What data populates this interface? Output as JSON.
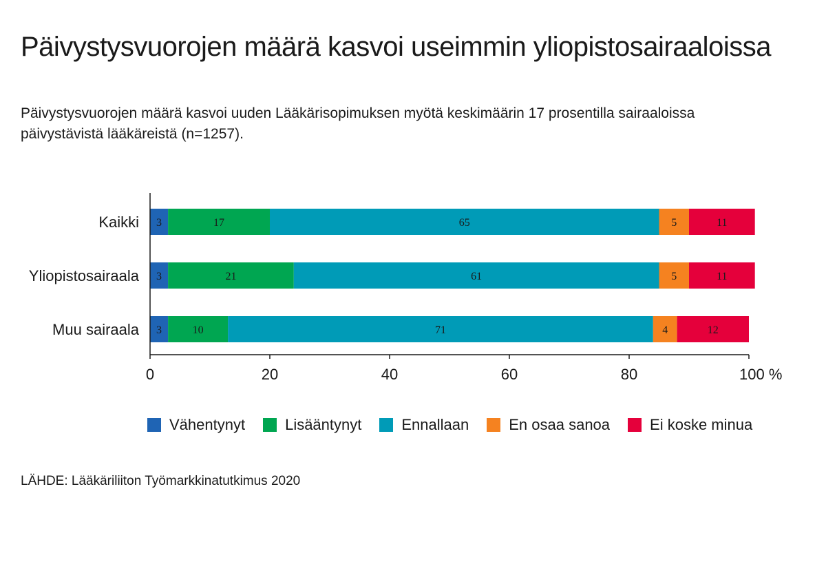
{
  "header": {
    "title": "Päivystysvuorojen määrä kasvoi useimmin yliopistosairaaloissa",
    "subtitle": "Päivystysvuorojen määrä kasvoi uuden Lääkärisopimuksen myötä keskimäärin 17 prosentilla sairaaloissa päivystävistä lääkäreistä (n=1257)."
  },
  "source": "LÄHDE: Lääkäriliiton Työmarkkinatutkimus 2020",
  "chart_data": {
    "type": "bar",
    "orientation": "horizontal",
    "stacked": true,
    "categories": [
      "Kaikki",
      "Yliopistosairaala",
      "Muu sairaala"
    ],
    "series": [
      {
        "name": "Vähentynyt",
        "color": "#1f64b4",
        "values": [
          3,
          3,
          3
        ]
      },
      {
        "name": "Lisääntynyt",
        "color": "#00a651",
        "values": [
          17,
          21,
          10
        ]
      },
      {
        "name": "Ennallaan",
        "color": "#009bb7",
        "values": [
          65,
          61,
          71
        ]
      },
      {
        "name": "En osaa sanoa",
        "color": "#f58220",
        "values": [
          5,
          5,
          4
        ]
      },
      {
        "name": "Ei koske minua",
        "color": "#e5003b",
        "values": [
          11,
          11,
          12
        ]
      }
    ],
    "xlim": [
      0,
      100
    ],
    "xticks": [
      0,
      20,
      40,
      60,
      80,
      100
    ],
    "xtick_labels": [
      "0",
      "20",
      "40",
      "60",
      "80",
      "100 %"
    ],
    "grid": false,
    "legend_position": "bottom"
  }
}
